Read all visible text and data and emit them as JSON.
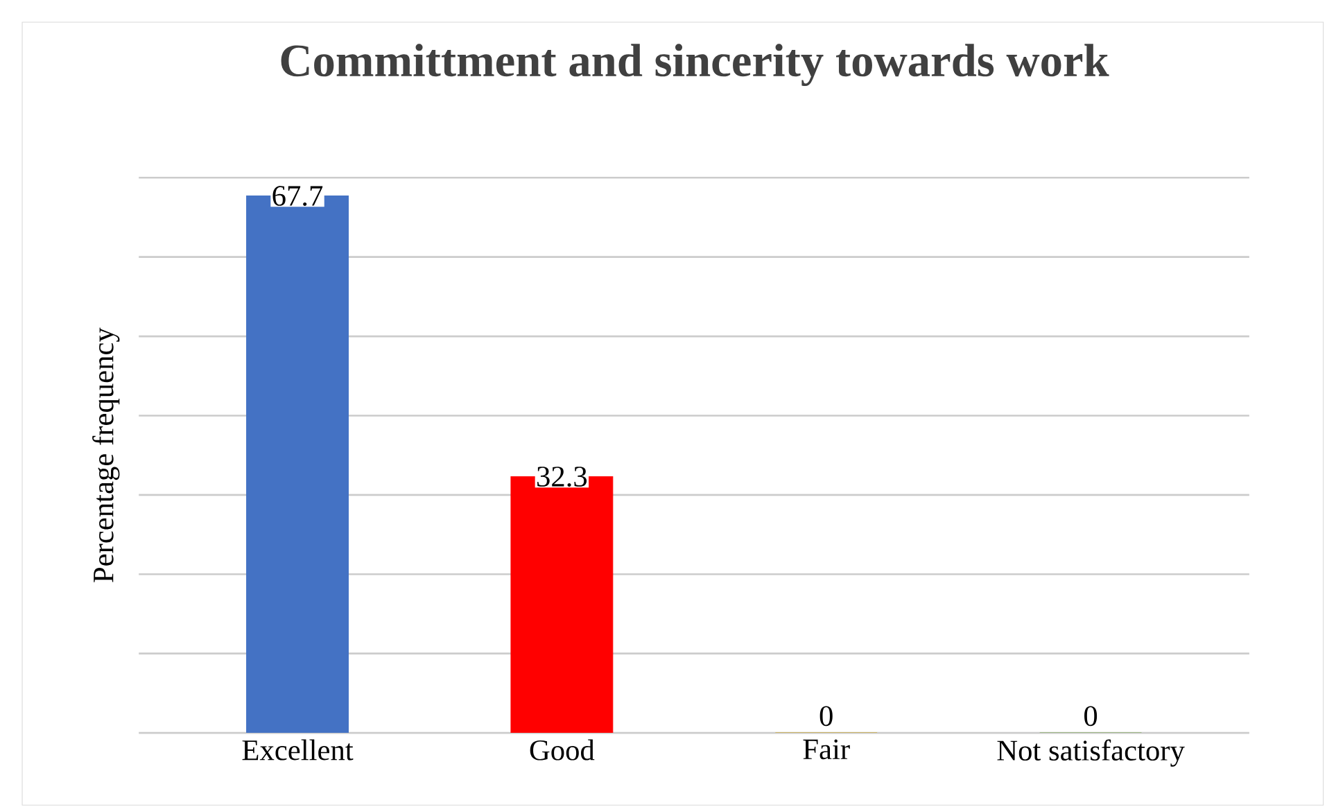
{
  "chart_data": {
    "type": "bar",
    "title": "Committment and sincerity towards work",
    "ylabel": "Percentage frequency",
    "categories": [
      "Excellent",
      "Good",
      "Fair",
      "Not satisfactory"
    ],
    "values": [
      67.7,
      32.3,
      0,
      0
    ],
    "colors": [
      "#4472c4",
      "#ff0000",
      "#c99a00",
      "#70a040"
    ],
    "ylim": [
      0,
      70
    ],
    "yticks": [
      {
        "value": 0,
        "label": null
      },
      {
        "value": 10,
        "label": null
      },
      {
        "value": 20,
        "label": null
      },
      {
        "value": 30,
        "label": null
      },
      {
        "value": 40,
        "label": null
      },
      {
        "value": 50,
        "label": null
      },
      {
        "value": 60,
        "label": null
      },
      {
        "value": 70,
        "label": null
      }
    ],
    "grid": "y",
    "data_labels": true,
    "tick_labels": "x"
  }
}
